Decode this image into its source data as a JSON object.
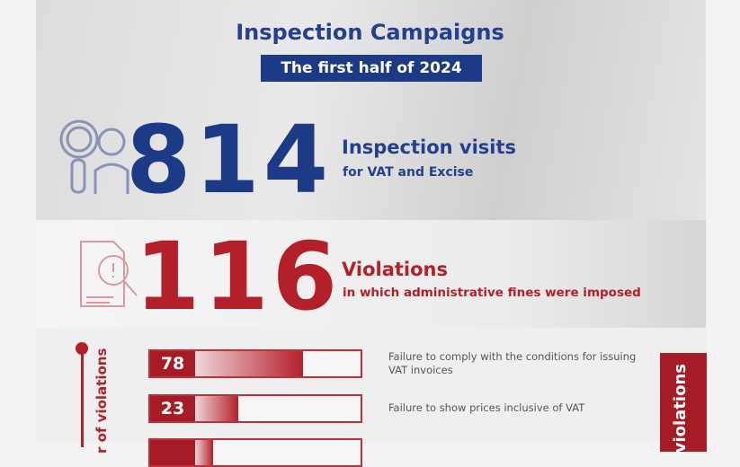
{
  "header": {
    "title": "Inspection Campaigns",
    "period": "The first half of  2024"
  },
  "visits": {
    "value": "814",
    "label": "Inspection visits",
    "sublabel": "for VAT and Excise",
    "icon": "inspector-magnifier-icon",
    "color": "#1d3a86"
  },
  "violations": {
    "value": "116",
    "label": "Violations",
    "sublabel": "in which administrative fines were imposed",
    "icon": "document-warning-icon",
    "color": "#b3202a"
  },
  "breakdown": {
    "axis_label": "r of violations",
    "side_label": "violations",
    "items": [
      {
        "value": 78,
        "label": "Failure to comply with the conditions for issuing VAT invoices"
      },
      {
        "value": 23,
        "label": "Failure to show prices inclusive of VAT"
      },
      {
        "value": null,
        "label": ""
      }
    ]
  }
}
